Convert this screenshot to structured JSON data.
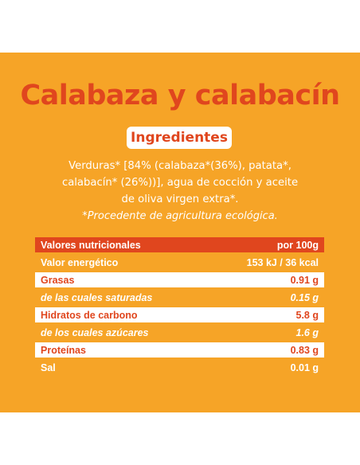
{
  "product": {
    "title": "Calabaza y calabacín"
  },
  "ingredients": {
    "heading": "Ingredientes",
    "lines": [
      "Verduras* [84% (calabaza*(36%), patata*,",
      "calabacín* (26%))], agua de cocción y aceite",
      "de oliva virgen extra*."
    ],
    "note": "*Procedente de agricultura ecológica."
  },
  "nutrition": {
    "header": {
      "label": "Valores nutricionales",
      "value": "por 100g"
    },
    "rows": [
      {
        "label": "Valor energético",
        "value": "153 kJ / 36 kcal"
      },
      {
        "label": "Grasas",
        "value": "0.91 g"
      },
      {
        "label": "de las cuales saturadas",
        "value": "0.15 g"
      },
      {
        "label": "Hidratos de carbono",
        "value": "5.8 g"
      },
      {
        "label": "de los cuales azúcares",
        "value": "1.6 g"
      },
      {
        "label": "Proteínas",
        "value": "0.83 g"
      },
      {
        "label": "Sal",
        "value": "0.01 g"
      }
    ]
  },
  "colors": {
    "background": "#f6a427",
    "accent": "#e0461e",
    "text_light": "#ffffff"
  }
}
